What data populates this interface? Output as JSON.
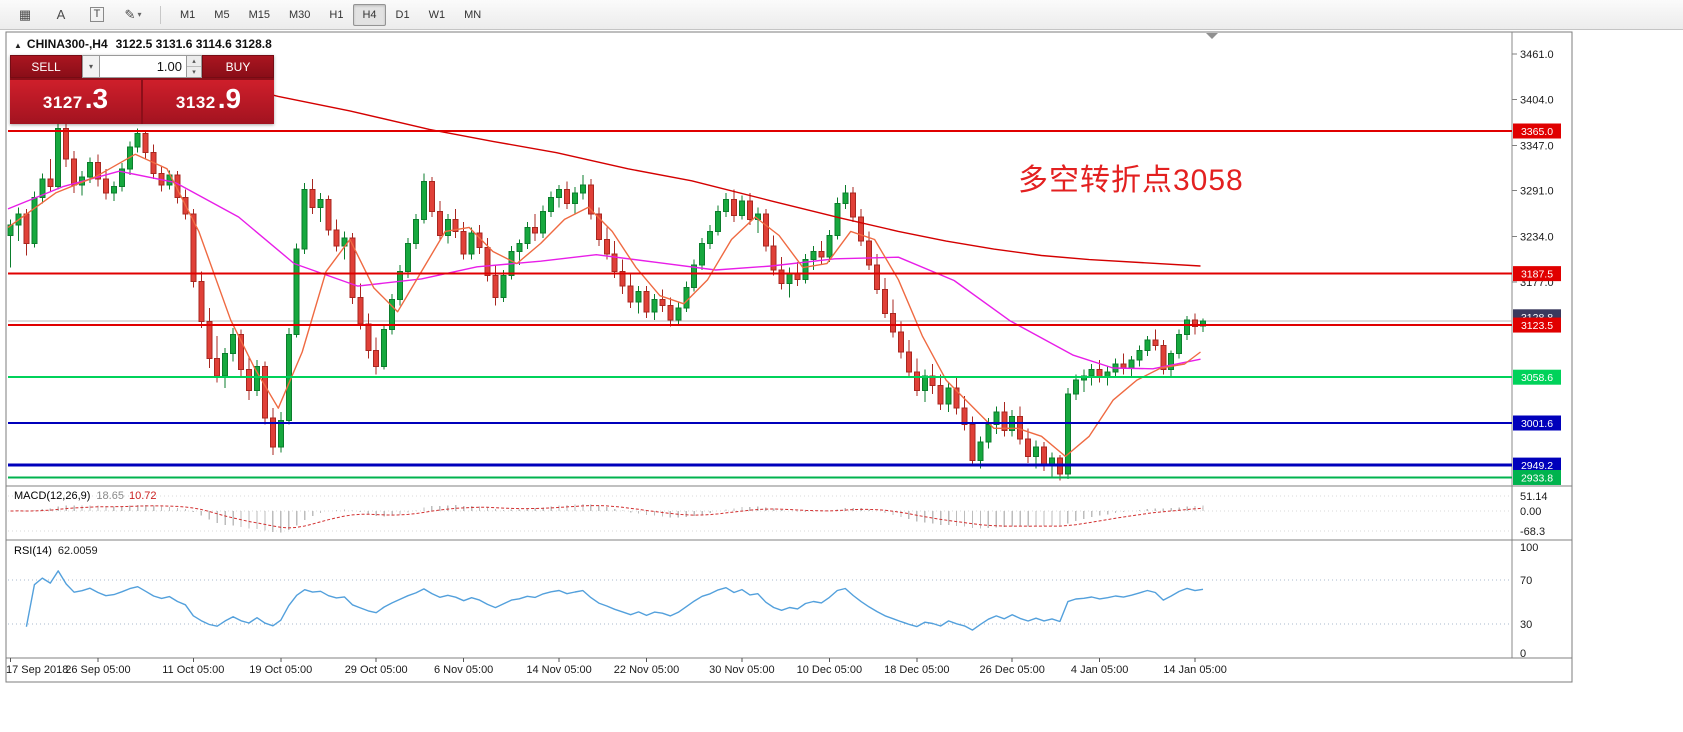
{
  "toolbar": {
    "tools": [
      {
        "name": "snap-grid-tool",
        "glyph": "▦"
      },
      {
        "name": "text-label-tool",
        "glyph": "A"
      },
      {
        "name": "text-tool",
        "glyph": "T",
        "boxed": true
      },
      {
        "name": "drawing-tools",
        "glyph": "✎",
        "dropdown": true
      }
    ],
    "timeframes": [
      "M1",
      "M5",
      "M15",
      "M30",
      "H1",
      "H4",
      "D1",
      "W1",
      "MN"
    ],
    "active_timeframe": "H4",
    "dropdown_icon": "▾"
  },
  "chart": {
    "collapse_glyph": "▲",
    "title_symbol": "CHINA300-,H4",
    "title_ohlc": "3122.5 3131.6 3114.6 3128.8",
    "annotation": "多空转折点3058"
  },
  "trade_panel": {
    "sell_label": "SELL",
    "buy_label": "BUY",
    "volume": "1.00",
    "bid_main": "3127",
    "bid_pips": ".3",
    "ask_main": "3132",
    "ask_pips": ".9",
    "dropdown_icon": "▾",
    "spin_up_icon": "▴",
    "spin_down_icon": "▾"
  },
  "indicators": {
    "macd_label": "MACD(12,26,9)",
    "macd_value": "18.65",
    "macd_signal_value": "10.72",
    "rsi_label": "RSI(14)",
    "rsi_value": "62.0059"
  },
  "chart_data": {
    "type": "candlestick",
    "symbol": "CHINA300-",
    "timeframe": "H4",
    "ohlc_display": {
      "open": 3122.5,
      "high": 3131.6,
      "low": 3114.6,
      "close": 3128.8
    },
    "up_color": "#16a83e",
    "down_color": "#e04038",
    "price_ticks": [
      3461.0,
      3404.0,
      3347.0,
      3291.0,
      3234.0,
      3177.0
    ],
    "levels": [
      {
        "price": 3365.0,
        "label": "3365.0",
        "color": "#e00000",
        "width": 2
      },
      {
        "price": 3187.5,
        "label": "3187.5",
        "color": "#e00000",
        "width": 2
      },
      {
        "price": 3123.5,
        "label": "3123.5",
        "color": "#e00000",
        "width": 2
      },
      {
        "price": 3058.6,
        "label": "3058.6",
        "color": "#00d25a",
        "width": 2
      },
      {
        "price": 3001.6,
        "label": "3001.6",
        "color": "#0000bb",
        "width": 2
      },
      {
        "price": 2949.2,
        "label": "2949.2",
        "color": "#0000bb",
        "width": 3
      },
      {
        "price": 2933.8,
        "label": "2933.8",
        "color": "#00b34e",
        "width": 2
      }
    ],
    "bid_line": {
      "price": 3128.8,
      "label": "3128.8",
      "line_color": "#b8b8b8",
      "label_bg": "#3a3a5e"
    },
    "ma_slow": {
      "color": "#d40000",
      "points": [
        [
          18,
          3452
        ],
        [
          26,
          3428
        ],
        [
          34,
          3408
        ],
        [
          43,
          3390
        ],
        [
          53,
          3367
        ],
        [
          61,
          3352
        ],
        [
          69,
          3338
        ],
        [
          78,
          3318
        ],
        [
          86,
          3303
        ],
        [
          96,
          3278
        ],
        [
          105,
          3256
        ],
        [
          112,
          3240
        ],
        [
          118,
          3228
        ],
        [
          124,
          3218
        ],
        [
          130,
          3210
        ],
        [
          136,
          3205
        ],
        [
          143,
          3201
        ],
        [
          150,
          3197
        ]
      ]
    },
    "ma_medium": {
      "color": "#e81ee8",
      "points": [
        [
          0,
          3268
        ],
        [
          7,
          3296
        ],
        [
          14,
          3315
        ],
        [
          21,
          3301
        ],
        [
          29,
          3258
        ],
        [
          36,
          3200
        ],
        [
          44,
          3172
        ],
        [
          52,
          3181
        ],
        [
          59,
          3196
        ],
        [
          67,
          3203
        ],
        [
          74,
          3211
        ],
        [
          82,
          3201
        ],
        [
          89,
          3192
        ],
        [
          96,
          3197
        ],
        [
          104,
          3206
        ],
        [
          112,
          3208
        ],
        [
          119,
          3179
        ],
        [
          126,
          3129
        ],
        [
          134,
          3086
        ],
        [
          139,
          3070
        ],
        [
          144,
          3069
        ],
        [
          150,
          3081
        ]
      ]
    },
    "ma_fast": {
      "color": "#ef6a42",
      "points": [
        [
          0,
          3245
        ],
        [
          6,
          3288
        ],
        [
          11,
          3308
        ],
        [
          16,
          3336
        ],
        [
          20,
          3318
        ],
        [
          24,
          3240
        ],
        [
          28,
          3130
        ],
        [
          31,
          3070
        ],
        [
          34,
          3020
        ],
        [
          37,
          3090
        ],
        [
          40,
          3190
        ],
        [
          43,
          3230
        ],
        [
          46,
          3170
        ],
        [
          49,
          3140
        ],
        [
          52,
          3190
        ],
        [
          55,
          3240
        ],
        [
          58,
          3245
        ],
        [
          61,
          3215
        ],
        [
          64,
          3200
        ],
        [
          67,
          3225
        ],
        [
          70,
          3255
        ],
        [
          73,
          3270
        ],
        [
          76,
          3240
        ],
        [
          79,
          3195
        ],
        [
          82,
          3160
        ],
        [
          85,
          3150
        ],
        [
          88,
          3180
        ],
        [
          91,
          3230
        ],
        [
          94,
          3258
        ],
        [
          97,
          3235
        ],
        [
          100,
          3195
        ],
        [
          103,
          3200
        ],
        [
          106,
          3240
        ],
        [
          109,
          3230
        ],
        [
          112,
          3180
        ],
        [
          115,
          3110
        ],
        [
          118,
          3055
        ],
        [
          121,
          3025
        ],
        [
          124,
          2995
        ],
        [
          127,
          2995
        ],
        [
          130,
          2985
        ],
        [
          133,
          2960
        ],
        [
          136,
          2985
        ],
        [
          139,
          3030
        ],
        [
          142,
          3055
        ],
        [
          145,
          3070
        ],
        [
          148,
          3075
        ],
        [
          150,
          3090
        ]
      ]
    },
    "macd": {
      "params": [
        12,
        26,
        9
      ],
      "hist_color": "#bdbdbd",
      "signal_color": "#d23030",
      "ticks": [
        {
          "v": 51.14,
          "label": "51.14"
        },
        {
          "v": 0,
          "label": "0.00"
        },
        {
          "v": -68.3,
          "label": "-68.3"
        }
      ]
    },
    "rsi": {
      "period": 14,
      "color": "#53a0dc",
      "levels": [
        70,
        30
      ],
      "ticks": [
        {
          "v": 100,
          "label": "100"
        },
        {
          "v": 70,
          "label": "70"
        },
        {
          "v": 30,
          "label": "30"
        },
        {
          "v": 0,
          "label": "0"
        }
      ]
    },
    "time_labels": [
      {
        "idx": 0,
        "text": "17 Sep 2018"
      },
      {
        "idx": 11,
        "text": "26 Sep 05:00"
      },
      {
        "idx": 23,
        "text": "11 Oct 05:00"
      },
      {
        "idx": 34,
        "text": "19 Oct 05:00"
      },
      {
        "idx": 46,
        "text": "29 Oct 05:00"
      },
      {
        "idx": 57,
        "text": "6 Nov 05:00"
      },
      {
        "idx": 69,
        "text": "14 Nov 05:00"
      },
      {
        "idx": 80,
        "text": "22 Nov 05:00"
      },
      {
        "idx": 92,
        "text": "30 Nov 05:00"
      },
      {
        "idx": 103,
        "text": "10 Dec 05:00"
      },
      {
        "idx": 114,
        "text": "18 Dec 05:00"
      },
      {
        "idx": 126,
        "text": "26 Dec 05:00"
      },
      {
        "idx": 137,
        "text": "4 Jan 05:00"
      },
      {
        "idx": 149,
        "text": "14 Jan 05:00"
      }
    ],
    "candles": [
      [
        3235,
        3255,
        3195,
        3248
      ],
      [
        3248,
        3270,
        3228,
        3262
      ],
      [
        3262,
        3268,
        3210,
        3225
      ],
      [
        3225,
        3290,
        3220,
        3282
      ],
      [
        3282,
        3312,
        3275,
        3305
      ],
      [
        3305,
        3330,
        3290,
        3296
      ],
      [
        3296,
        3385,
        3292,
        3368
      ],
      [
        3368,
        3375,
        3320,
        3330
      ],
      [
        3330,
        3340,
        3288,
        3298
      ],
      [
        3298,
        3315,
        3285,
        3308
      ],
      [
        3308,
        3332,
        3300,
        3326
      ],
      [
        3326,
        3336,
        3296,
        3305
      ],
      [
        3305,
        3318,
        3280,
        3288
      ],
      [
        3288,
        3302,
        3278,
        3296
      ],
      [
        3296,
        3325,
        3290,
        3318
      ],
      [
        3318,
        3352,
        3310,
        3345
      ],
      [
        3345,
        3368,
        3338,
        3362
      ],
      [
        3362,
        3366,
        3330,
        3338
      ],
      [
        3338,
        3348,
        3305,
        3312
      ],
      [
        3312,
        3322,
        3290,
        3298
      ],
      [
        3298,
        3316,
        3292,
        3310
      ],
      [
        3310,
        3315,
        3275,
        3282
      ],
      [
        3282,
        3292,
        3255,
        3262
      ],
      [
        3262,
        3268,
        3170,
        3178
      ],
      [
        3178,
        3190,
        3120,
        3128
      ],
      [
        3128,
        3145,
        3070,
        3082
      ],
      [
        3082,
        3110,
        3052,
        3060
      ],
      [
        3060,
        3095,
        3045,
        3088
      ],
      [
        3088,
        3120,
        3078,
        3112
      ],
      [
        3112,
        3118,
        3060,
        3068
      ],
      [
        3068,
        3085,
        3030,
        3042
      ],
      [
        3042,
        3080,
        3035,
        3072
      ],
      [
        3072,
        3078,
        3000,
        3008
      ],
      [
        3008,
        3020,
        2962,
        2972
      ],
      [
        2972,
        3015,
        2965,
        3005
      ],
      [
        3005,
        3120,
        3000,
        3112
      ],
      [
        3112,
        3225,
        3108,
        3218
      ],
      [
        3218,
        3300,
        3212,
        3292
      ],
      [
        3292,
        3305,
        3262,
        3270
      ],
      [
        3270,
        3288,
        3252,
        3280
      ],
      [
        3280,
        3285,
        3235,
        3242
      ],
      [
        3242,
        3255,
        3215,
        3222
      ],
      [
        3222,
        3240,
        3205,
        3232
      ],
      [
        3232,
        3238,
        3150,
        3158
      ],
      [
        3158,
        3175,
        3118,
        3125
      ],
      [
        3125,
        3138,
        3082,
        3092
      ],
      [
        3092,
        3108,
        3062,
        3072
      ],
      [
        3072,
        3125,
        3068,
        3118
      ],
      [
        3118,
        3162,
        3112,
        3155
      ],
      [
        3155,
        3198,
        3148,
        3190
      ],
      [
        3190,
        3232,
        3182,
        3225
      ],
      [
        3225,
        3262,
        3218,
        3255
      ],
      [
        3255,
        3312,
        3250,
        3302
      ],
      [
        3302,
        3308,
        3258,
        3265
      ],
      [
        3265,
        3278,
        3228,
        3235
      ],
      [
        3235,
        3262,
        3225,
        3255
      ],
      [
        3255,
        3268,
        3232,
        3240
      ],
      [
        3240,
        3252,
        3205,
        3212
      ],
      [
        3212,
        3245,
        3205,
        3238
      ],
      [
        3238,
        3248,
        3212,
        3220
      ],
      [
        3220,
        3232,
        3178,
        3185
      ],
      [
        3185,
        3198,
        3148,
        3158
      ],
      [
        3158,
        3192,
        3152,
        3185
      ],
      [
        3185,
        3222,
        3180,
        3215
      ],
      [
        3215,
        3230,
        3198,
        3225
      ],
      [
        3225,
        3252,
        3218,
        3245
      ],
      [
        3245,
        3262,
        3228,
        3238
      ],
      [
        3238,
        3272,
        3232,
        3265
      ],
      [
        3265,
        3290,
        3258,
        3282
      ],
      [
        3282,
        3298,
        3270,
        3292
      ],
      [
        3292,
        3302,
        3268,
        3275
      ],
      [
        3275,
        3295,
        3262,
        3288
      ],
      [
        3288,
        3310,
        3280,
        3298
      ],
      [
        3298,
        3305,
        3255,
        3262
      ],
      [
        3262,
        3270,
        3222,
        3230
      ],
      [
        3230,
        3245,
        3205,
        3212
      ],
      [
        3212,
        3228,
        3182,
        3190
      ],
      [
        3190,
        3205,
        3162,
        3172
      ],
      [
        3172,
        3188,
        3145,
        3152
      ],
      [
        3152,
        3172,
        3138,
        3165
      ],
      [
        3165,
        3172,
        3132,
        3140
      ],
      [
        3140,
        3162,
        3130,
        3155
      ],
      [
        3155,
        3168,
        3140,
        3148
      ],
      [
        3148,
        3158,
        3122,
        3130
      ],
      [
        3130,
        3152,
        3125,
        3145
      ],
      [
        3145,
        3178,
        3140,
        3170
      ],
      [
        3170,
        3205,
        3165,
        3198
      ],
      [
        3198,
        3232,
        3192,
        3225
      ],
      [
        3225,
        3248,
        3218,
        3240
      ],
      [
        3240,
        3272,
        3235,
        3265
      ],
      [
        3265,
        3288,
        3258,
        3280
      ],
      [
        3280,
        3292,
        3252,
        3260
      ],
      [
        3260,
        3285,
        3255,
        3278
      ],
      [
        3278,
        3288,
        3248,
        3255
      ],
      [
        3255,
        3270,
        3238,
        3262
      ],
      [
        3262,
        3268,
        3215,
        3222
      ],
      [
        3222,
        3235,
        3185,
        3192
      ],
      [
        3192,
        3208,
        3168,
        3175
      ],
      [
        3175,
        3195,
        3158,
        3188
      ],
      [
        3188,
        3202,
        3172,
        3180
      ],
      [
        3180,
        3212,
        3175,
        3205
      ],
      [
        3205,
        3222,
        3192,
        3215
      ],
      [
        3215,
        3228,
        3198,
        3208
      ],
      [
        3208,
        3242,
        3202,
        3235
      ],
      [
        3235,
        3282,
        3230,
        3275
      ],
      [
        3275,
        3298,
        3268,
        3288
      ],
      [
        3288,
        3295,
        3252,
        3258
      ],
      [
        3258,
        3268,
        3222,
        3228
      ],
      [
        3228,
        3240,
        3192,
        3198
      ],
      [
        3198,
        3212,
        3162,
        3168
      ],
      [
        3168,
        3182,
        3132,
        3138
      ],
      [
        3138,
        3155,
        3108,
        3115
      ],
      [
        3115,
        3128,
        3082,
        3090
      ],
      [
        3090,
        3105,
        3058,
        3065
      ],
      [
        3065,
        3082,
        3035,
        3042
      ],
      [
        3042,
        3068,
        3028,
        3060
      ],
      [
        3060,
        3075,
        3038,
        3048
      ],
      [
        3048,
        3062,
        3018,
        3025
      ],
      [
        3025,
        3052,
        3015,
        3045
      ],
      [
        3045,
        3058,
        3012,
        3020
      ],
      [
        3020,
        3035,
        2992,
        3000
      ],
      [
        3000,
        3010,
        2948,
        2955
      ],
      [
        2955,
        2985,
        2945,
        2978
      ],
      [
        2978,
        3008,
        2970,
        3000
      ],
      [
        3000,
        3022,
        2988,
        3015
      ],
      [
        3015,
        3028,
        2985,
        2992
      ],
      [
        2992,
        3018,
        2985,
        3010
      ],
      [
        3010,
        3022,
        2975,
        2982
      ],
      [
        2982,
        2995,
        2952,
        2960
      ],
      [
        2960,
        2980,
        2945,
        2972
      ],
      [
        2972,
        2978,
        2942,
        2950
      ],
      [
        2950,
        2965,
        2935,
        2958
      ],
      [
        2958,
        2962,
        2930,
        2938
      ],
      [
        2938,
        3045,
        2932,
        3038
      ],
      [
        3038,
        3062,
        3030,
        3055
      ],
      [
        3055,
        3068,
        3040,
        3060
      ],
      [
        3060,
        3075,
        3048,
        3068
      ],
      [
        3068,
        3080,
        3052,
        3058
      ],
      [
        3058,
        3072,
        3048,
        3065
      ],
      [
        3065,
        3082,
        3058,
        3075
      ],
      [
        3075,
        3088,
        3062,
        3070
      ],
      [
        3070,
        3085,
        3060,
        3080
      ],
      [
        3080,
        3098,
        3072,
        3092
      ],
      [
        3092,
        3110,
        3085,
        3105
      ],
      [
        3105,
        3118,
        3092,
        3098
      ],
      [
        3098,
        3105,
        3062,
        3068
      ],
      [
        3068,
        3092,
        3060,
        3088
      ],
      [
        3088,
        3118,
        3082,
        3112
      ],
      [
        3112,
        3135,
        3105,
        3130
      ],
      [
        3130,
        3138,
        3112,
        3122
      ],
      [
        3122.5,
        3131.6,
        3114.6,
        3128.8
      ]
    ]
  }
}
